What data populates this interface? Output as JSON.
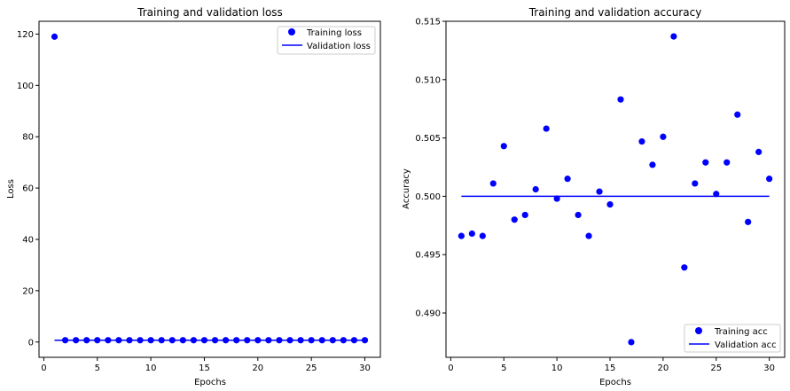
{
  "chart_data": [
    {
      "type": "scatter",
      "title": "Training and validation loss",
      "xlabel": "Epochs",
      "ylabel": "Loss",
      "xlim": [
        -0.45,
        31.45
      ],
      "ylim": [
        -5.96,
        125.0
      ],
      "xticks": [
        0,
        5,
        10,
        15,
        20,
        25,
        30
      ],
      "yticks": [
        0,
        20,
        40,
        60,
        80,
        100,
        120
      ],
      "grid": false,
      "legend_position": "top-right",
      "series": [
        {
          "name": "Training loss",
          "style": "points",
          "color": "#0000ff",
          "x": [
            1,
            2,
            3,
            4,
            5,
            6,
            7,
            8,
            9,
            10,
            11,
            12,
            13,
            14,
            15,
            16,
            17,
            18,
            19,
            20,
            21,
            22,
            23,
            24,
            25,
            26,
            27,
            28,
            29,
            30
          ],
          "y": [
            119.0,
            0.7,
            0.7,
            0.7,
            0.7,
            0.7,
            0.7,
            0.7,
            0.7,
            0.7,
            0.7,
            0.7,
            0.7,
            0.7,
            0.7,
            0.7,
            0.7,
            0.7,
            0.7,
            0.7,
            0.7,
            0.7,
            0.7,
            0.7,
            0.7,
            0.7,
            0.7,
            0.7,
            0.7,
            0.7
          ]
        },
        {
          "name": "Validation loss",
          "style": "line",
          "color": "#0000ff",
          "x": [
            1,
            2,
            3,
            4,
            5,
            6,
            7,
            8,
            9,
            10,
            11,
            12,
            13,
            14,
            15,
            16,
            17,
            18,
            19,
            20,
            21,
            22,
            23,
            24,
            25,
            26,
            27,
            28,
            29,
            30
          ],
          "y": [
            0.69,
            0.69,
            0.69,
            0.69,
            0.69,
            0.69,
            0.69,
            0.69,
            0.69,
            0.69,
            0.69,
            0.69,
            0.69,
            0.69,
            0.69,
            0.69,
            0.69,
            0.69,
            0.69,
            0.69,
            0.69,
            0.69,
            0.69,
            0.69,
            0.69,
            0.69,
            0.69,
            0.69,
            0.69,
            0.69
          ]
        }
      ]
    },
    {
      "type": "scatter",
      "title": "Training and validation accuracy",
      "xlabel": "Epochs",
      "ylabel": "Accuracy",
      "xlim": [
        -0.45,
        31.45
      ],
      "ylim": [
        0.4862,
        0.515
      ],
      "xticks": [
        0,
        5,
        10,
        15,
        20,
        25,
        30
      ],
      "yticks": [
        0.49,
        0.495,
        0.5,
        0.505,
        0.51,
        0.515
      ],
      "ytick_labels": [
        "0.490",
        "0.495",
        "0.500",
        "0.505",
        "0.510",
        "0.515"
      ],
      "grid": false,
      "legend_position": "bottom-right",
      "series": [
        {
          "name": "Training acc",
          "style": "points",
          "color": "#0000ff",
          "x": [
            1,
            2,
            3,
            4,
            5,
            6,
            7,
            8,
            9,
            10,
            11,
            12,
            13,
            14,
            15,
            16,
            17,
            18,
            19,
            20,
            21,
            22,
            23,
            24,
            25,
            26,
            27,
            28,
            29,
            30
          ],
          "y": [
            0.4966,
            0.4968,
            0.4966,
            0.5011,
            0.5043,
            0.498,
            0.4984,
            0.5006,
            0.5058,
            0.4998,
            0.5015,
            0.4984,
            0.4966,
            0.5004,
            0.4993,
            0.5083,
            0.4875,
            0.5047,
            0.5027,
            0.5051,
            0.5137,
            0.4939,
            0.5011,
            0.5029,
            0.5002,
            0.5029,
            0.507,
            0.4978,
            0.5038,
            0.5015
          ]
        },
        {
          "name": "Validation acc",
          "style": "line",
          "color": "#0000ff",
          "x": [
            1,
            2,
            3,
            4,
            5,
            6,
            7,
            8,
            9,
            10,
            11,
            12,
            13,
            14,
            15,
            16,
            17,
            18,
            19,
            20,
            21,
            22,
            23,
            24,
            25,
            26,
            27,
            28,
            29,
            30
          ],
          "y": [
            0.5,
            0.5,
            0.5,
            0.5,
            0.5,
            0.5,
            0.5,
            0.5,
            0.5,
            0.5,
            0.5,
            0.5,
            0.5,
            0.5,
            0.5,
            0.5,
            0.5,
            0.5,
            0.5,
            0.5,
            0.5,
            0.5,
            0.5,
            0.5,
            0.5,
            0.5,
            0.5,
            0.5,
            0.5,
            0.5
          ]
        }
      ]
    }
  ]
}
